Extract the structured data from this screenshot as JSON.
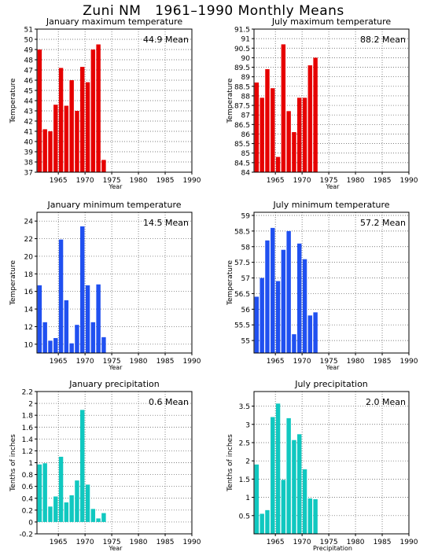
{
  "page_title": "Zuni NM   1961–1990 Monthly Means",
  "chart_data": [
    {
      "type": "bar",
      "title": "January maximum temperature",
      "xlabel": "Year",
      "ylabel": "Temperature",
      "mean_label": "44.9 Mean",
      "color": "#e60000",
      "xlim": [
        1961,
        1990
      ],
      "ylim": [
        37,
        51
      ],
      "yticks": [
        37,
        38,
        39,
        40,
        41,
        42,
        43,
        44,
        45,
        46,
        47,
        48,
        49,
        50,
        51
      ],
      "xticks": [
        1965,
        1970,
        1975,
        1980,
        1985,
        1990
      ],
      "grid": true,
      "x": [
        1961,
        1962,
        1963,
        1964,
        1965,
        1966,
        1967,
        1968,
        1969,
        1970,
        1971,
        1972,
        1973
      ],
      "values": [
        49.0,
        41.2,
        41.0,
        43.6,
        47.2,
        43.5,
        46.0,
        43.0,
        47.3,
        45.8,
        49.0,
        49.5,
        38.2
      ]
    },
    {
      "type": "bar",
      "title": "July maximum temperature",
      "xlabel": "Year",
      "ylabel": "Temperature",
      "mean_label": "88.2 Mean",
      "color": "#e60000",
      "xlim": [
        1961,
        1990
      ],
      "ylim": [
        84,
        91.5
      ],
      "yticks": [
        84,
        84.5,
        85,
        85.5,
        86,
        86.5,
        87,
        87.5,
        88,
        88.5,
        89,
        89.5,
        90,
        90.5,
        91,
        91.5
      ],
      "xticks": [
        1965,
        1970,
        1975,
        1980,
        1985,
        1990
      ],
      "grid": true,
      "x": [
        1961,
        1962,
        1963,
        1964,
        1965,
        1966,
        1967,
        1968,
        1969,
        1970,
        1971,
        1972
      ],
      "values": [
        88.7,
        87.9,
        89.4,
        88.4,
        84.8,
        90.7,
        87.2,
        86.1,
        87.9,
        87.9,
        89.6,
        90.0
      ]
    },
    {
      "type": "bar",
      "title": "January minimum temperature",
      "xlabel": "Year",
      "ylabel": "Temperature",
      "mean_label": "14.5 Mean",
      "color": "#2050f0",
      "xlim": [
        1961,
        1990
      ],
      "ylim": [
        9,
        25
      ],
      "yticks": [
        10,
        12,
        14,
        16,
        18,
        20,
        22,
        24
      ],
      "xticks": [
        1965,
        1970,
        1975,
        1980,
        1985,
        1990
      ],
      "grid": true,
      "x": [
        1961,
        1962,
        1963,
        1964,
        1965,
        1966,
        1967,
        1968,
        1969,
        1970,
        1971,
        1972,
        1973
      ],
      "values": [
        16.7,
        12.5,
        10.4,
        10.7,
        21.9,
        15.0,
        10.1,
        12.2,
        23.4,
        16.7,
        12.5,
        16.8,
        10.8
      ]
    },
    {
      "type": "bar",
      "title": "July minimum temperature",
      "xlabel": "Year",
      "ylabel": "Temperature",
      "mean_label": "57.2 Mean",
      "color": "#2050f0",
      "xlim": [
        1961,
        1990
      ],
      "ylim": [
        54.6,
        59.1
      ],
      "yticks": [
        55,
        55.5,
        56,
        56.5,
        57,
        57.5,
        58,
        58.5,
        59
      ],
      "xticks": [
        1965,
        1970,
        1975,
        1980,
        1985,
        1990
      ],
      "grid": true,
      "x": [
        1961,
        1962,
        1963,
        1964,
        1965,
        1966,
        1967,
        1968,
        1969,
        1970,
        1971,
        1972
      ],
      "values": [
        56.4,
        57.0,
        58.2,
        58.6,
        56.9,
        57.9,
        58.5,
        55.2,
        58.1,
        57.6,
        55.8,
        55.9
      ]
    },
    {
      "type": "bar",
      "title": "January precipitation",
      "xlabel": "Year",
      "ylabel": "Tenths of inches",
      "mean_label": "0.6 Mean",
      "color": "#10c8c0",
      "xlim": [
        1961,
        1990
      ],
      "ylim": [
        -0.2,
        2.2
      ],
      "yticks": [
        -0.2,
        0,
        0.2,
        0.4,
        0.6,
        0.8,
        1,
        1.2,
        1.4,
        1.6,
        1.8,
        2,
        2.2
      ],
      "xticks": [
        1965,
        1970,
        1975,
        1980,
        1985,
        1990
      ],
      "grid": true,
      "x": [
        1961,
        1962,
        1963,
        1964,
        1965,
        1966,
        1967,
        1968,
        1969,
        1970,
        1971,
        1972,
        1973
      ],
      "values": [
        0.97,
        0.99,
        0.26,
        0.43,
        1.1,
        0.33,
        0.45,
        0.7,
        1.89,
        0.63,
        0.22,
        0.06,
        0.15
      ]
    },
    {
      "type": "bar",
      "title": "July precipitation",
      "xlabel": "Precipitation",
      "ylabel": "Tenths of inches",
      "mean_label": "2.0 Mean",
      "color": "#10c8c0",
      "xlim": [
        1961,
        1990
      ],
      "ylim": [
        0,
        3.9
      ],
      "yticks": [
        0.5,
        1,
        1.5,
        2,
        2.5,
        3,
        3.5
      ],
      "xticks": [
        1965,
        1970,
        1975,
        1980,
        1985,
        1990
      ],
      "grid": true,
      "x": [
        1961,
        1962,
        1963,
        1964,
        1965,
        1966,
        1967,
        1968,
        1969,
        1970,
        1971,
        1972
      ],
      "values": [
        1.9,
        0.55,
        0.65,
        3.2,
        3.57,
        1.48,
        3.17,
        2.57,
        2.73,
        1.77,
        0.97,
        0.95
      ]
    }
  ]
}
